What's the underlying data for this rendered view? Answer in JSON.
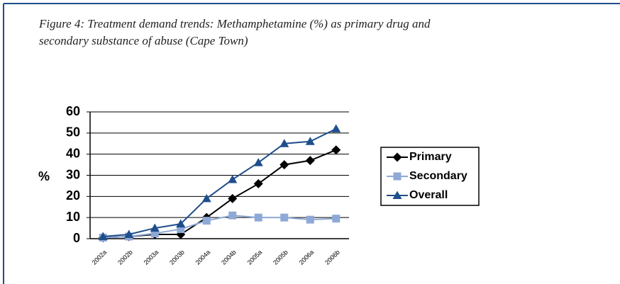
{
  "chart_data": {
    "type": "line",
    "title": [
      "Figure 4: Treatment demand trends: Methamphetamine (%) as primary drug and",
      "secondary substance of  abuse (Cape Town)"
    ],
    "ylabel": "%",
    "categories": [
      "2002a",
      "2002b",
      "2003a",
      "2003b",
      "2004a",
      "2004b",
      "2005a",
      "2005b",
      "2006a",
      "2006b"
    ],
    "series": [
      {
        "name": "Primary",
        "color": "#000000",
        "marker": "diamond",
        "values": [
          0.5,
          1,
          2,
          2,
          10,
          19,
          26,
          35,
          37,
          42
        ]
      },
      {
        "name": "Secondary",
        "color": "#8ea9d6",
        "marker": "square",
        "values": [
          0.5,
          1,
          2.5,
          4.5,
          8.5,
          11,
          10,
          10,
          9,
          9.5
        ]
      },
      {
        "name": "Overall",
        "color": "#1f4e8c",
        "marker": "triangle",
        "values": [
          1,
          2,
          5,
          7,
          19,
          28,
          36,
          45,
          46,
          52
        ]
      }
    ],
    "ylim": [
      0,
      60
    ],
    "yticks": [
      0,
      10,
      20,
      30,
      40,
      50,
      60
    ],
    "grid": true,
    "legend": "right"
  }
}
